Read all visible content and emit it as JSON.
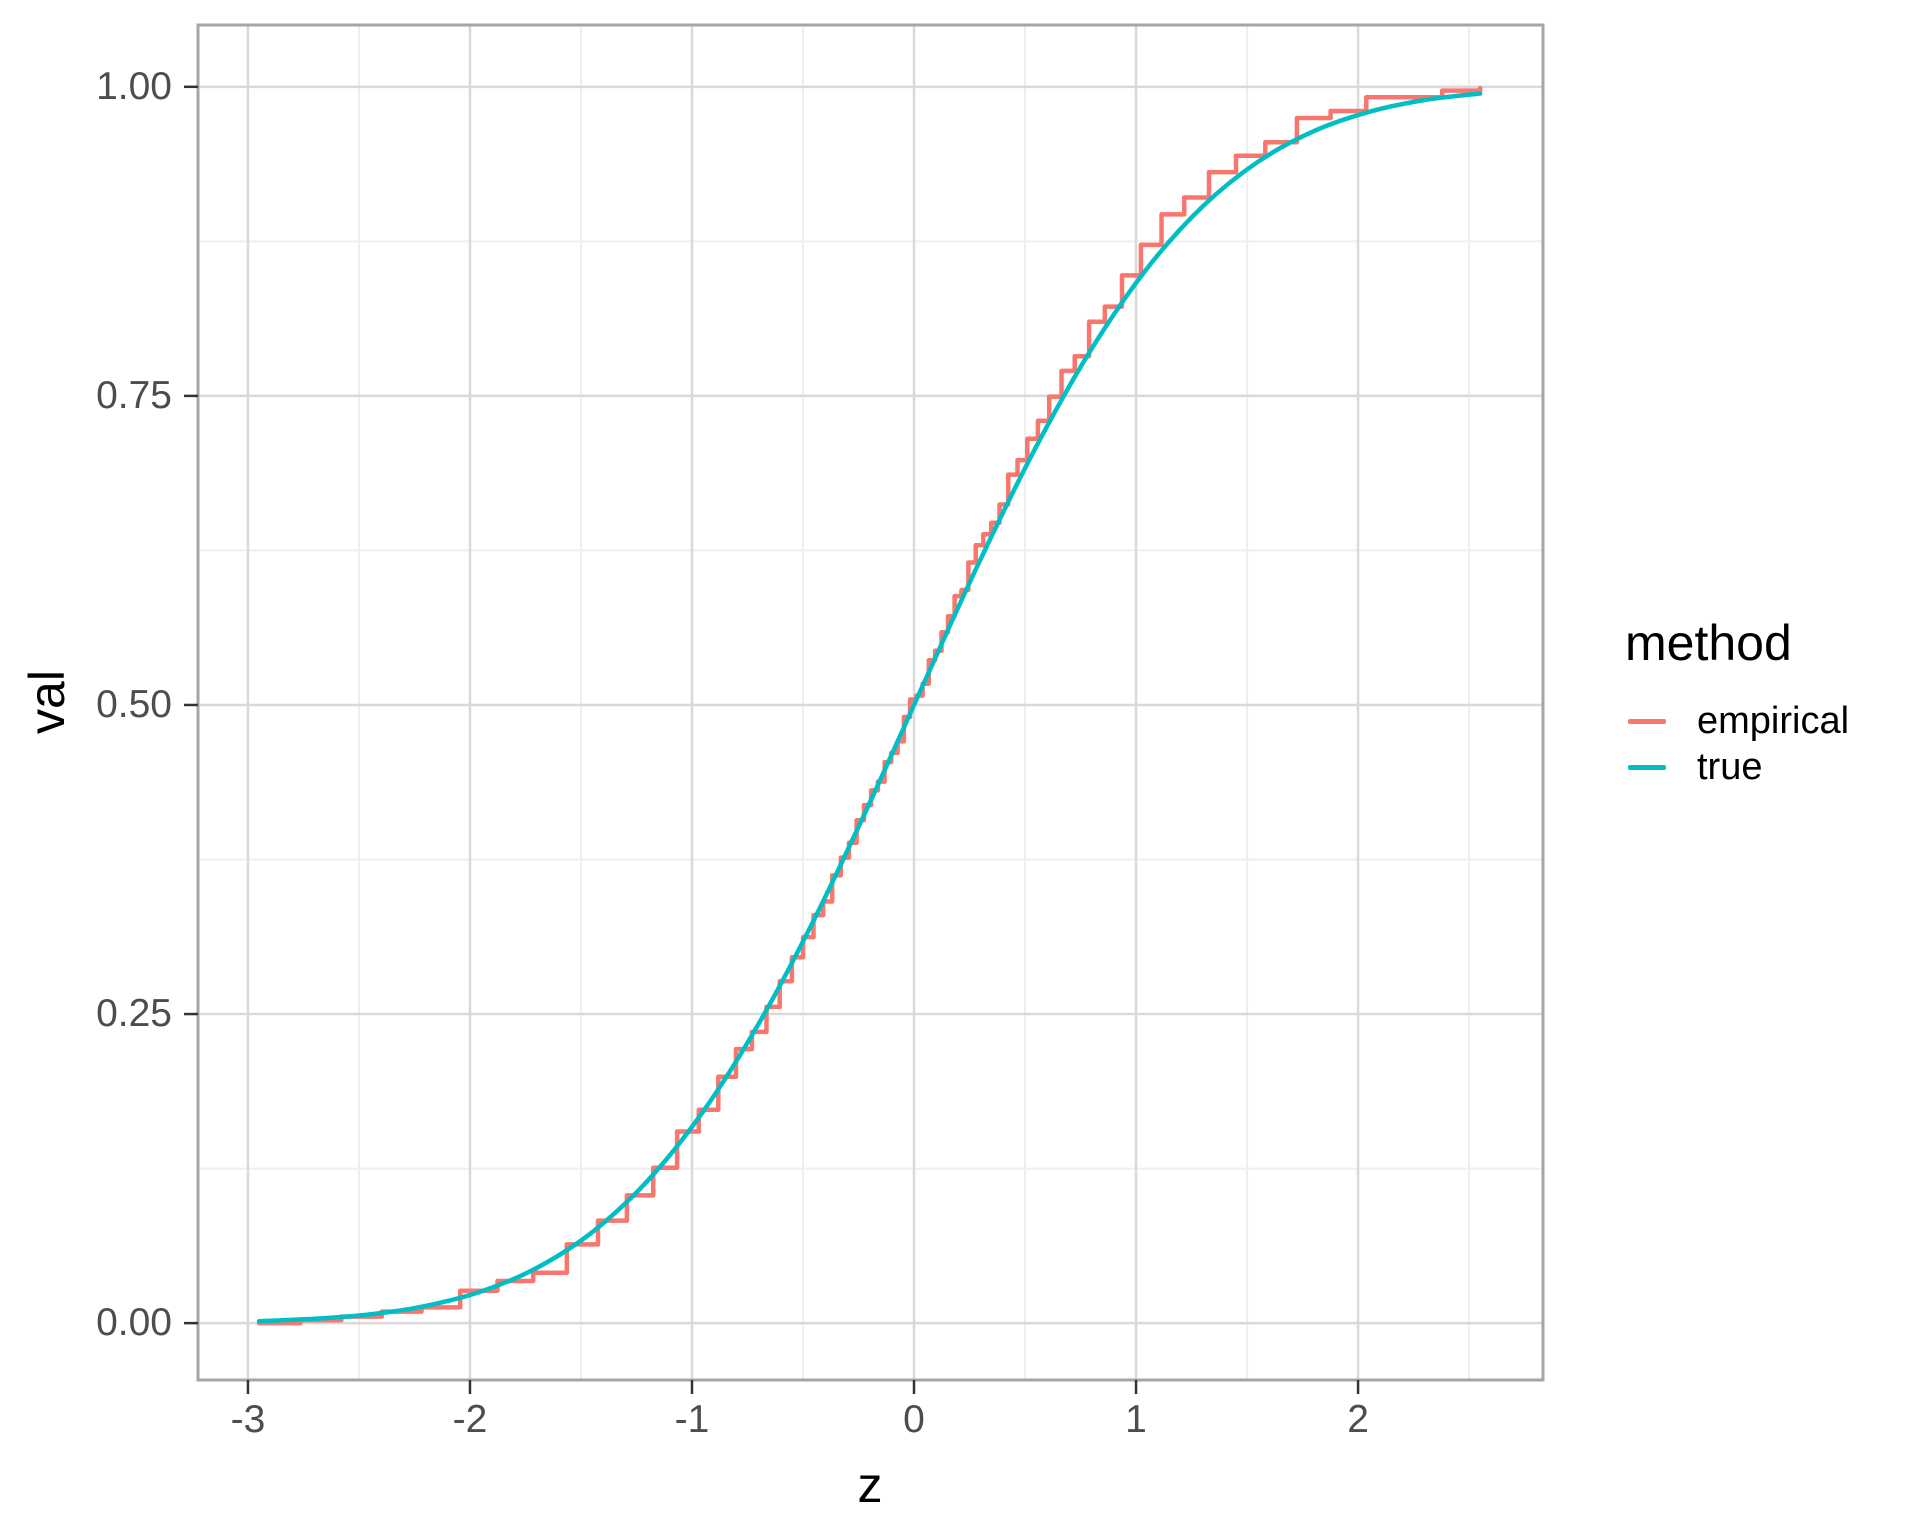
{
  "figure": {
    "background": "#FFFFFF"
  },
  "chart_data": {
    "type": "line",
    "title": "",
    "xlabel": "z",
    "ylabel": "val",
    "x_domain": [
      -3.225,
      2.833
    ],
    "y_domain": [
      -0.046,
      1.05
    ],
    "x_ticks": {
      "values": [
        -3,
        -2,
        -1,
        0,
        1,
        2
      ],
      "labels": [
        "-3",
        "-2",
        "-1",
        "0",
        "1",
        "2"
      ],
      "minor": [
        -2.5,
        -1.5,
        -0.5,
        0.5,
        1.5,
        2.5
      ]
    },
    "y_ticks": {
      "values": [
        0,
        0.25,
        0.5,
        0.75,
        1.0
      ],
      "labels": [
        "0.00",
        "0.25",
        "0.50",
        "0.75",
        "1.00"
      ],
      "minor": [
        0.125,
        0.375,
        0.625,
        0.875
      ]
    },
    "grid": {
      "major": "#D9D9D9",
      "minor": "#EFEFEF",
      "border": "#A6A6A6",
      "tick": "#333333",
      "panel_bg": "#FFFFFF"
    },
    "text_colors": {
      "tick_label": "#4D4D4D",
      "axis_title": "#000000"
    },
    "legend": {
      "title": "method",
      "position": "right",
      "items": [
        {
          "label": "empirical",
          "color": "#F8766D"
        },
        {
          "label": "true",
          "color": "#00BFC4"
        }
      ]
    },
    "series": [
      {
        "name": "empirical",
        "style": "ecdf-step",
        "color": "#F8766D",
        "noise_seed": 11,
        "noise_amp": 0.006,
        "points": {
          "z": [
            -2.95,
            -2.7,
            -2.45,
            -2.2,
            -1.95,
            -1.7,
            -1.45,
            -1.2,
            -0.95,
            -0.7,
            -0.45,
            -0.2,
            0.05,
            0.3,
            0.55,
            0.8,
            1.05,
            1.3,
            1.55,
            1.8,
            2.05,
            2.3,
            2.55
          ],
          "val": [
            0.0,
            0.003,
            0.007,
            0.012,
            0.028,
            0.047,
            0.077,
            0.12,
            0.178,
            0.248,
            0.33,
            0.425,
            0.526,
            0.635,
            0.73,
            0.812,
            0.878,
            0.928,
            0.958,
            0.978,
            0.989,
            0.995,
            0.999
          ]
        }
      },
      {
        "name": "true",
        "style": "smooth",
        "color": "#00BFC4",
        "points": {
          "z": [
            -2.95,
            -2.7,
            -2.45,
            -2.2,
            -1.95,
            -1.7,
            -1.45,
            -1.2,
            -0.95,
            -0.7,
            -0.45,
            -0.2,
            0.05,
            0.3,
            0.55,
            0.8,
            1.05,
            1.3,
            1.55,
            1.8,
            2.05,
            2.3,
            2.55
          ],
          "val": [
            0.0016,
            0.0035,
            0.0071,
            0.0139,
            0.0256,
            0.0446,
            0.0735,
            0.1151,
            0.1711,
            0.242,
            0.3264,
            0.4207,
            0.5199,
            0.6179,
            0.7088,
            0.7881,
            0.8531,
            0.9032,
            0.9394,
            0.9641,
            0.9798,
            0.9893,
            0.9946
          ]
        }
      }
    ]
  }
}
